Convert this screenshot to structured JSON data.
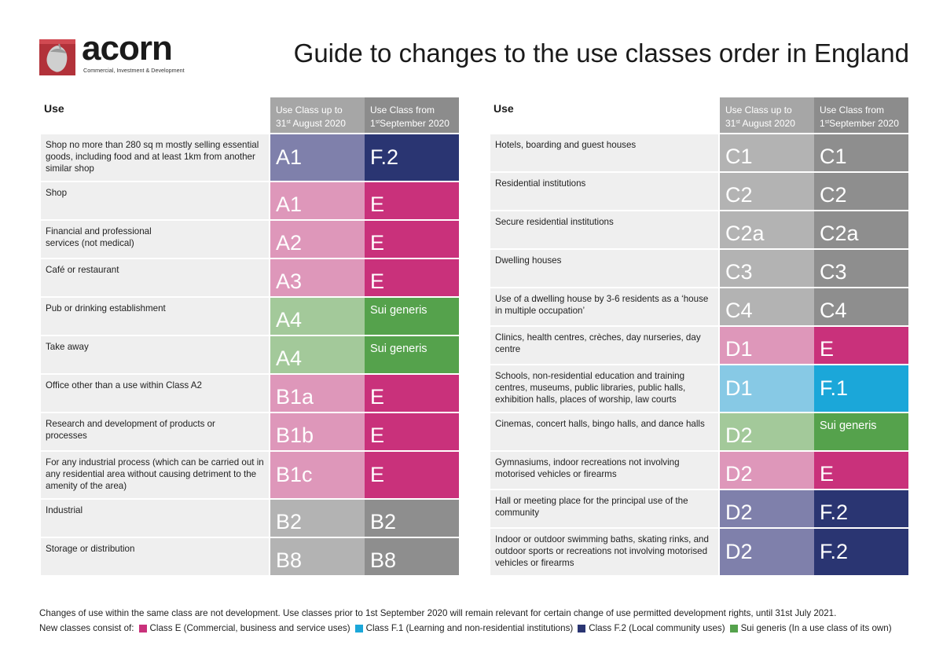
{
  "brand": {
    "name": "acorn",
    "tagline": "Commercial, Investment & Development",
    "colors": {
      "mark": "#b2323a",
      "mark_dark": "#7e1c22",
      "acorn": "#c9c9c9"
    },
    "icon": "acorn-logo-icon"
  },
  "title": "Guide to changes to the use classes order in England",
  "headers": {
    "use": "Use",
    "old_line1": "Use Class up to",
    "old_day": "31",
    "old_sup": "st",
    "old_rest": " August 2020",
    "new_line1": "Use Class from",
    "new_day": "1",
    "new_sup": "st",
    "new_rest": "September 2020"
  },
  "left_rows": [
    {
      "use": "Shop no more than 280 sq m mostly selling essential goods, including food and at least 1km from another similar shop",
      "old": "A1",
      "new": "F.2"
    },
    {
      "use": "Shop",
      "old": "A1",
      "new": "E"
    },
    {
      "use": "Financial and professional services (not medical)",
      "old": "A2",
      "new": "E"
    },
    {
      "use": "Café or restaurant",
      "old": "A3",
      "new": "E"
    },
    {
      "use": "Pub or drinking establishment",
      "old": "A4",
      "new": "Sui generis"
    },
    {
      "use": "Take away",
      "old": "A4",
      "new": "Sui generis"
    },
    {
      "use": "Office other than a use within Class A2",
      "old": "B1a",
      "new": "E"
    },
    {
      "use": "Research and development of products or processes",
      "old": "B1b",
      "new": "E"
    },
    {
      "use": "For any industrial process (which can be carried out in any residential area without causing detriment to the amenity of the area)",
      "old": "B1c",
      "new": "E"
    },
    {
      "use": "Industrial",
      "old": "B2",
      "new": "B2"
    },
    {
      "use": "Storage or distribution",
      "old": "B8",
      "new": "B8"
    }
  ],
  "right_rows": [
    {
      "use": "Hotels, boarding and guest houses",
      "old": "C1",
      "new": "C1"
    },
    {
      "use": "Residential institutions",
      "old": "C2",
      "new": "C2"
    },
    {
      "use": "Secure residential institutions",
      "old": "C2a",
      "new": "C2a"
    },
    {
      "use": "Dwelling houses",
      "old": "C3",
      "new": "C3"
    },
    {
      "use": "Use of a dwelling house by 3-6 residents as a ‘house in multiple occupation’",
      "old": "C4",
      "new": "C4"
    },
    {
      "use": "Clinics, health centres, crèches, day nurseries, day centre",
      "old": "D1",
      "new": "E"
    },
    {
      "use": "Schools, non-residential education and training centres, museums, public libraries, public halls, exhibition halls, places of worship, law courts",
      "old": "D1",
      "new": "F.1"
    },
    {
      "use": "Cinemas, concert halls, bingo halls, and dance halls",
      "old": "D2",
      "new": "Sui generis"
    },
    {
      "use": "Gymnasiums, indoor recreations not involving motorised vehicles or firearms",
      "old": "D2",
      "new": "E"
    },
    {
      "use": "Hall or meeting place for the principal use of the community",
      "old": "D2",
      "new": "F.2"
    },
    {
      "use": "Indoor or outdoor swimming baths, skating rinks, and outdoor sports or recreations not involving motorised vehicles or firearms",
      "old": "D2",
      "new": "F.2"
    }
  ],
  "footer": {
    "note": "Changes of use within the same class are not development. Use classes prior to 1st September 2020 will remain relevant for certain change of use permitted development rights, until 31st July 2021.",
    "legend_intro": "New classes consist of:",
    "legend": [
      {
        "label": "Class E (Commercial, business and service uses)",
        "color": "#c9317b"
      },
      {
        "label": "Class F.1 (Learning and non-residential institutions)",
        "color": "#1ba7d9"
      },
      {
        "label": "Class F.2 (Local community uses)",
        "color": "#2a3572"
      },
      {
        "label": "Sui generis (In a use class of its own)",
        "color": "#55a24c"
      }
    ]
  }
}
